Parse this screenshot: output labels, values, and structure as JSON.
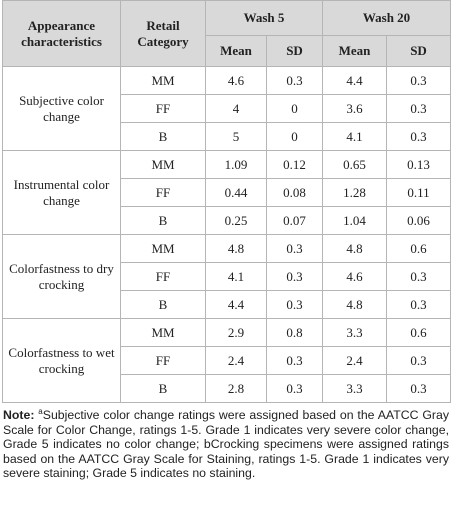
{
  "table": {
    "header": {
      "characteristic": "Appearance characteristics",
      "category": "Retail Category",
      "groups": [
        "Wash 5",
        "Wash 20"
      ],
      "subheaders": [
        "Mean",
        "SD",
        "Mean",
        "SD"
      ]
    },
    "groups": [
      {
        "label": "Subjective color change",
        "rows": [
          {
            "category": "MM",
            "values": [
              4.6,
              0.3,
              4.4,
              0.3
            ]
          },
          {
            "category": "FF",
            "values": [
              4,
              0,
              3.6,
              0.3
            ]
          },
          {
            "category": "B",
            "values": [
              5,
              0,
              4.1,
              0.3
            ]
          }
        ]
      },
      {
        "label": "Instrumental color change",
        "rows": [
          {
            "category": "MM",
            "values": [
              1.09,
              0.12,
              0.65,
              0.13
            ]
          },
          {
            "category": "FF",
            "values": [
              0.44,
              0.08,
              1.28,
              0.11
            ]
          },
          {
            "category": "B",
            "values": [
              0.25,
              0.07,
              1.04,
              0.06
            ]
          }
        ]
      },
      {
        "label": "Colorfastness to dry crocking",
        "rows": [
          {
            "category": "MM",
            "values": [
              4.8,
              0.3,
              4.8,
              0.6
            ]
          },
          {
            "category": "FF",
            "values": [
              4.1,
              0.3,
              4.6,
              0.3
            ]
          },
          {
            "category": "B",
            "values": [
              4.4,
              0.3,
              4.8,
              0.3
            ]
          }
        ]
      },
      {
        "label": "Colorfastness to wet crocking",
        "rows": [
          {
            "category": "MM",
            "values": [
              2.9,
              0.8,
              3.3,
              0.6
            ]
          },
          {
            "category": "FF",
            "values": [
              2.4,
              0.3,
              2.4,
              0.3
            ]
          },
          {
            "category": "B",
            "values": [
              2.8,
              0.3,
              3.3,
              0.3
            ]
          }
        ]
      }
    ]
  },
  "note": {
    "label": "Note:",
    "superscript": "a",
    "text": "Subjective color change ratings were assigned based on the AATCC Gray Scale for Color Change, ratings 1-5. Grade 1 indicates very severe color change, Grade 5 indicates no color change; bCrocking specimens were assigned ratings based on the AATCC Gray Scale for Staining, ratings 1-5. Grade 1 indicates very severe staining; Grade 5 indicates no staining."
  }
}
